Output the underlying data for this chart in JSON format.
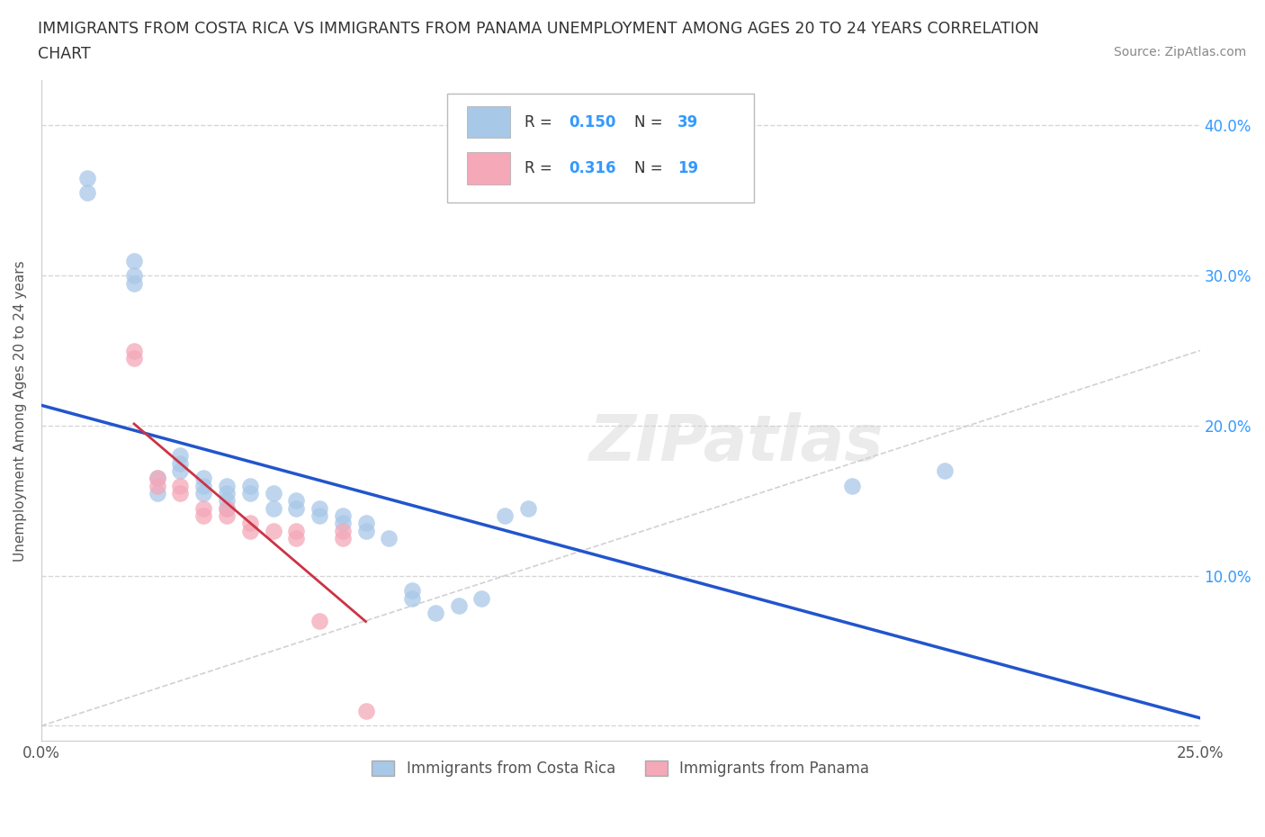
{
  "title_line1": "IMMIGRANTS FROM COSTA RICA VS IMMIGRANTS FROM PANAMA UNEMPLOYMENT AMONG AGES 20 TO 24 YEARS CORRELATION",
  "title_line2": "CHART",
  "source": "Source: ZipAtlas.com",
  "ylabel": "Unemployment Among Ages 20 to 24 years",
  "xlim": [
    0.0,
    0.25
  ],
  "ylim": [
    -0.01,
    0.43
  ],
  "xtick_vals": [
    0.0,
    0.05,
    0.1,
    0.15,
    0.2,
    0.25
  ],
  "xtick_labels": [
    "0.0%",
    "",
    "",
    "",
    "",
    "25.0%"
  ],
  "ytick_vals": [
    0.0,
    0.1,
    0.2,
    0.3,
    0.4
  ],
  "ytick_labels": [
    "",
    "10.0%",
    "20.0%",
    "30.0%",
    "40.0%"
  ],
  "cr_color": "#a8c8e8",
  "pan_color": "#f4a8b8",
  "trendline_cr_color": "#2255cc",
  "trendline_pan_color": "#cc3344",
  "diagonal_color": "#cccccc",
  "watermark": "ZIPatlas",
  "legend_R_cr": "0.150",
  "legend_N_cr": "39",
  "legend_R_pan": "0.316",
  "legend_N_pan": "19",
  "cr_x": [
    0.01,
    0.01,
    0.02,
    0.02,
    0.02,
    0.025,
    0.025,
    0.03,
    0.03,
    0.03,
    0.035,
    0.035,
    0.035,
    0.04,
    0.04,
    0.04,
    0.04,
    0.045,
    0.045,
    0.05,
    0.05,
    0.055,
    0.055,
    0.06,
    0.06,
    0.065,
    0.065,
    0.07,
    0.07,
    0.075,
    0.08,
    0.08,
    0.085,
    0.09,
    0.095,
    0.1,
    0.105,
    0.175,
    0.195
  ],
  "cr_y": [
    0.355,
    0.365,
    0.295,
    0.3,
    0.31,
    0.155,
    0.165,
    0.17,
    0.175,
    0.18,
    0.155,
    0.16,
    0.165,
    0.145,
    0.15,
    0.155,
    0.16,
    0.155,
    0.16,
    0.145,
    0.155,
    0.145,
    0.15,
    0.14,
    0.145,
    0.135,
    0.14,
    0.13,
    0.135,
    0.125,
    0.085,
    0.09,
    0.075,
    0.08,
    0.085,
    0.14,
    0.145,
    0.16,
    0.17
  ],
  "pan_x": [
    0.02,
    0.02,
    0.025,
    0.025,
    0.03,
    0.03,
    0.035,
    0.035,
    0.04,
    0.04,
    0.045,
    0.045,
    0.05,
    0.055,
    0.055,
    0.06,
    0.065,
    0.065,
    0.07
  ],
  "pan_y": [
    0.245,
    0.25,
    0.16,
    0.165,
    0.155,
    0.16,
    0.14,
    0.145,
    0.14,
    0.145,
    0.13,
    0.135,
    0.13,
    0.125,
    0.13,
    0.07,
    0.125,
    0.13,
    0.01
  ]
}
